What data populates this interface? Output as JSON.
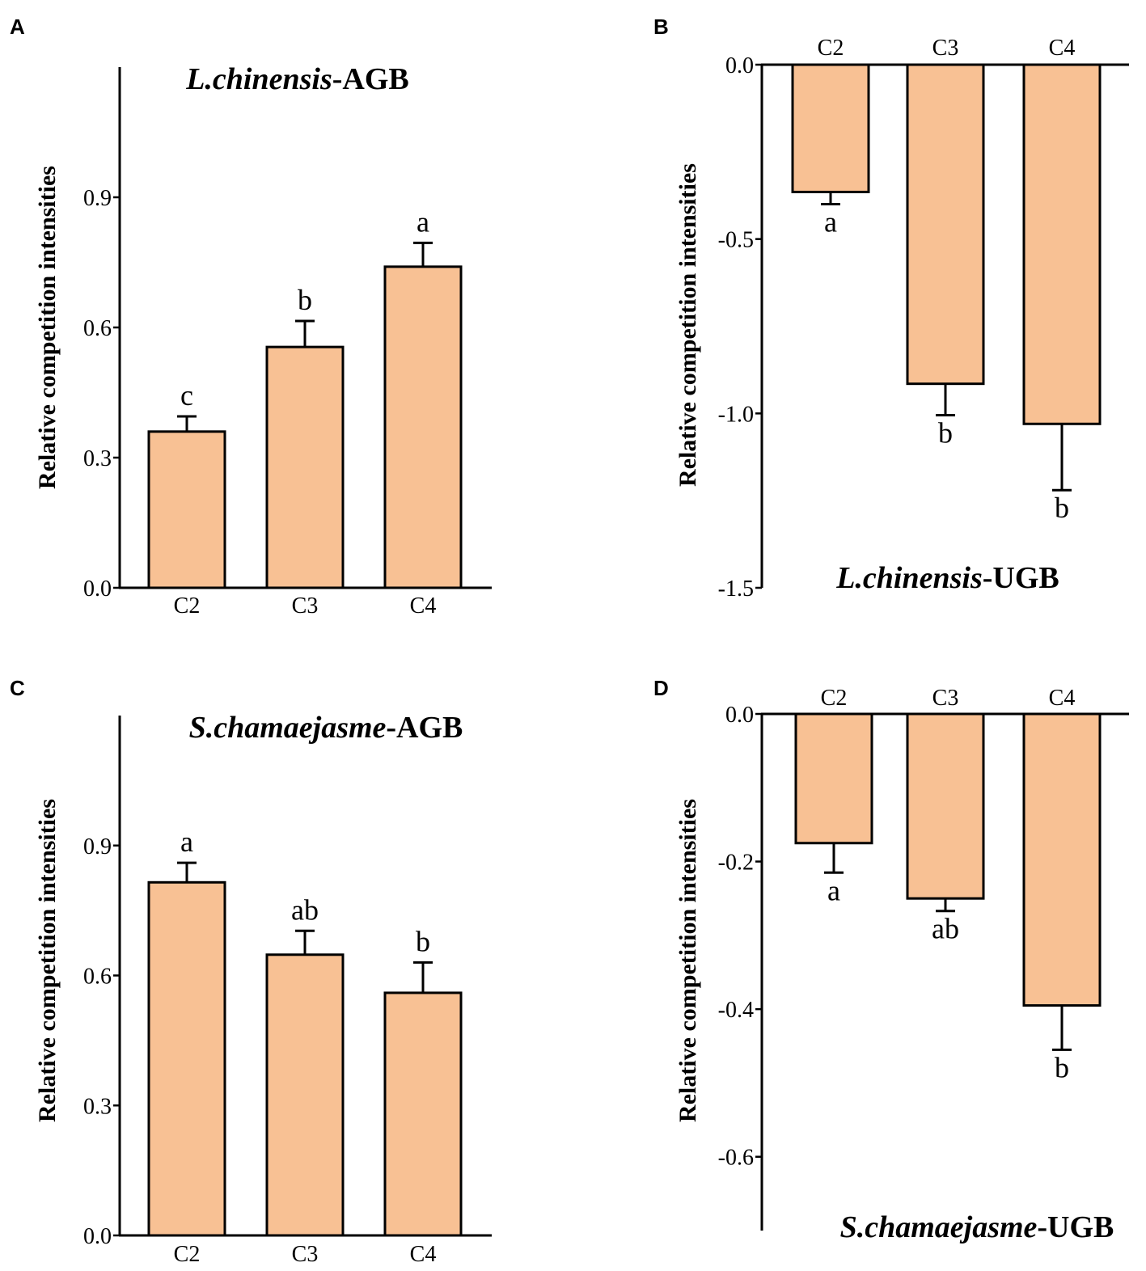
{
  "colors": {
    "bar_fill": "#f8c194",
    "stroke": "#000000",
    "background": "#ffffff"
  },
  "chart_data": [
    {
      "panel": "A",
      "type": "bar",
      "title_species": "L.chinensis",
      "title_suffix": "-AGB",
      "ylabel": "Relative competition intensities",
      "categories": [
        "C2",
        "C3",
        "C4"
      ],
      "values": [
        0.36,
        0.555,
        0.74
      ],
      "errors": [
        0.035,
        0.06,
        0.055
      ],
      "letters": [
        "c",
        "b",
        "a"
      ],
      "ylim": [
        0,
        1.2
      ],
      "yticks": [
        0,
        0.3,
        0.6,
        0.9
      ],
      "ytick_labels": [
        "0.0",
        "0.3",
        "0.6",
        "0.9"
      ],
      "orientation": "up"
    },
    {
      "panel": "B",
      "type": "bar",
      "title_species": "L.chinensis",
      "title_suffix": "-UGB",
      "ylabel": "Relative competition intensities",
      "categories": [
        "C2",
        "C3",
        "C4"
      ],
      "values": [
        -0.365,
        -0.915,
        -1.03
      ],
      "errors": [
        0.035,
        0.09,
        0.19
      ],
      "letters": [
        "a",
        "b",
        "b"
      ],
      "ylim": [
        -1.5,
        0
      ],
      "yticks": [
        0,
        -0.5,
        -1.0,
        -1.5
      ],
      "ytick_labels": [
        "0.0",
        "-0.5",
        "-1.0",
        "-1.5"
      ],
      "orientation": "down"
    },
    {
      "panel": "C",
      "type": "bar",
      "title_species": "S.chamaejasme",
      "title_suffix": "-AGB",
      "ylabel": "Relative competition intensities",
      "categories": [
        "C2",
        "C3",
        "C4"
      ],
      "values": [
        0.815,
        0.648,
        0.56
      ],
      "errors": [
        0.045,
        0.055,
        0.07
      ],
      "letters": [
        "a",
        "ab",
        "b"
      ],
      "ylim": [
        0,
        1.2
      ],
      "yticks": [
        0,
        0.3,
        0.6,
        0.9
      ],
      "ytick_labels": [
        "0.0",
        "0.3",
        "0.6",
        "0.9"
      ],
      "orientation": "up"
    },
    {
      "panel": "D",
      "type": "bar",
      "title_species": "S.chamaejasme",
      "title_suffix": "-UGB",
      "ylabel": "Relative competition intensities",
      "categories": [
        "C2",
        "C3",
        "C4"
      ],
      "values": [
        -0.175,
        -0.25,
        -0.395
      ],
      "errors": [
        0.04,
        0.017,
        0.06
      ],
      "letters": [
        "a",
        "ab",
        "b"
      ],
      "ylim": [
        -0.7,
        0
      ],
      "yticks": [
        0,
        -0.2,
        -0.4,
        -0.6
      ],
      "ytick_labels": [
        "0.0",
        "-0.2",
        "-0.4",
        "-0.6"
      ],
      "orientation": "down"
    }
  ]
}
